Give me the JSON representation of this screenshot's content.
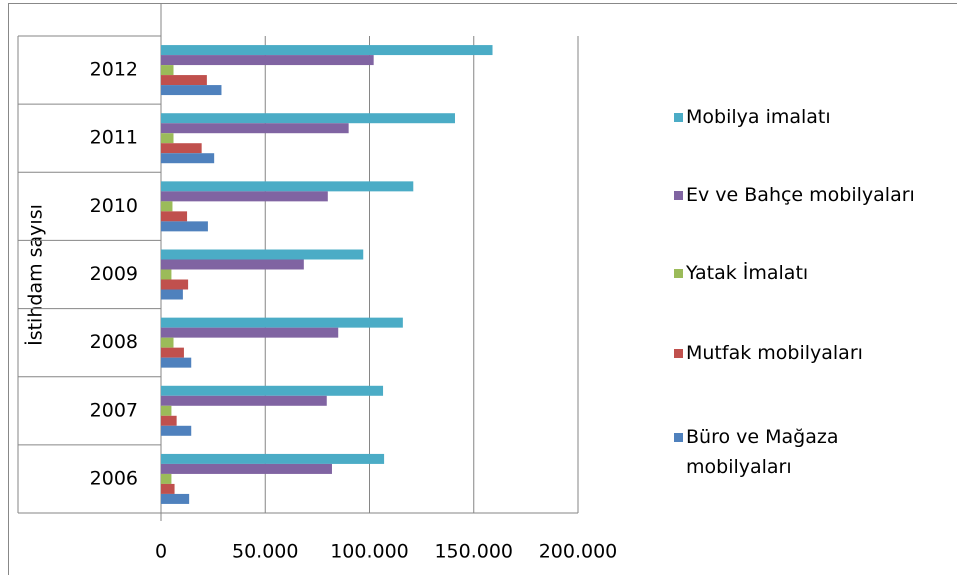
{
  "chart_data": {
    "type": "bar",
    "orientation": "horizontal",
    "y_axis_label": "İstihdam sayısı",
    "categories": [
      "2006",
      "2007",
      "2008",
      "2009",
      "2010",
      "2011",
      "2012"
    ],
    "series": [
      {
        "name": "Mobilya imalatı",
        "color": "#4bacc6",
        "values": [
          107000,
          106500,
          116000,
          97000,
          121000,
          141000,
          159000
        ]
      },
      {
        "name": "Ev ve Bahçe mobilyaları",
        "color": "#8064a2",
        "values": [
          82000,
          79500,
          85000,
          68500,
          80000,
          90000,
          102000
        ]
      },
      {
        "name": "Yatak İmalatı",
        "color": "#9bbb59",
        "values": [
          5000,
          5000,
          6000,
          5000,
          5500,
          6000,
          6000
        ]
      },
      {
        "name": "Mutfak mobilyaları",
        "color": "#c0504d",
        "values": [
          6500,
          7500,
          11000,
          13000,
          12500,
          19500,
          22000
        ]
      },
      {
        "name": "Büro ve Mağaza mobilyaları",
        "color": "#4f81bd",
        "values": [
          13500,
          14500,
          14500,
          10500,
          22500,
          25500,
          29000
        ]
      }
    ],
    "xlim": [
      0,
      200000
    ],
    "xticks": [
      0,
      {
        "value": 50000,
        "label": "50.000"
      },
      {
        "value": 100000,
        "label": "100.000"
      },
      {
        "value": 150000,
        "label": "150.000"
      },
      {
        "value": 200000,
        "label": "200.000"
      }
    ],
    "grid": true
  }
}
